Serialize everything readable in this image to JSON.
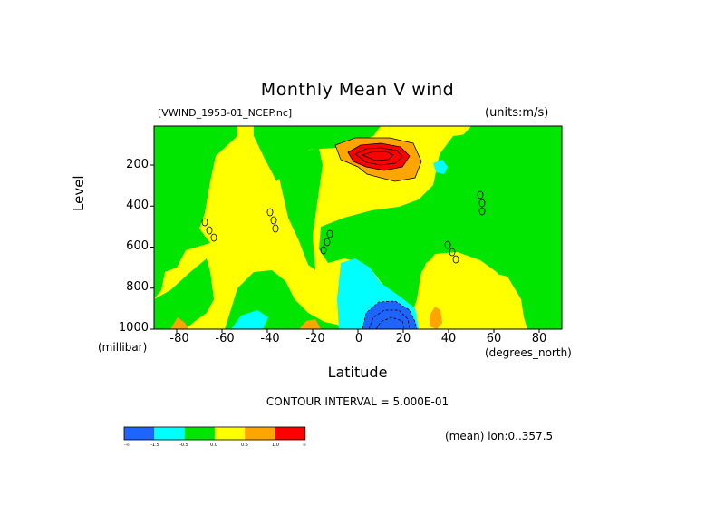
{
  "title": "Monthly Mean V wind",
  "dataset": "[VWIND_1953-01_NCEP.nc]",
  "units": "(units:m/s)",
  "contour_interval": "CONTOUR INTERVAL = 5.000E-01",
  "mean_note": "(mean) lon:0..357.5",
  "colors": {
    "lt_-1.5": "#1e64ff",
    "-1.5_-0.5": "#00ffff",
    "-0.5_0.0": "#00e600",
    "0.0_0.5": "#ffff00",
    "0.5_1.0": "#ffa500",
    "gt_1.0": "#ff0000"
  },
  "chart_data": {
    "type": "heatmap",
    "xlabel": "Latitude",
    "xunit": "(degrees_north)",
    "ylabel": "Level",
    "yunit": "(millibar)",
    "xlim": [
      -90,
      90
    ],
    "ylim": [
      1000,
      10
    ],
    "xticks": [
      "-80",
      "-60",
      "-40",
      "-20",
      "0",
      "20",
      "40",
      "60",
      "80"
    ],
    "yticks": [
      "200",
      "400",
      "600",
      "800",
      "1000"
    ],
    "contour_interval": 0.5,
    "colorbar": {
      "levels": [
        "-∞",
        "-1.5",
        "-0.5",
        "0.0",
        "0.5",
        "1.0",
        "∞"
      ],
      "colors": [
        "#1e64ff",
        "#00ffff",
        "#00e600",
        "#ffff00",
        "#ffa500",
        "#ff0000"
      ]
    }
  }
}
